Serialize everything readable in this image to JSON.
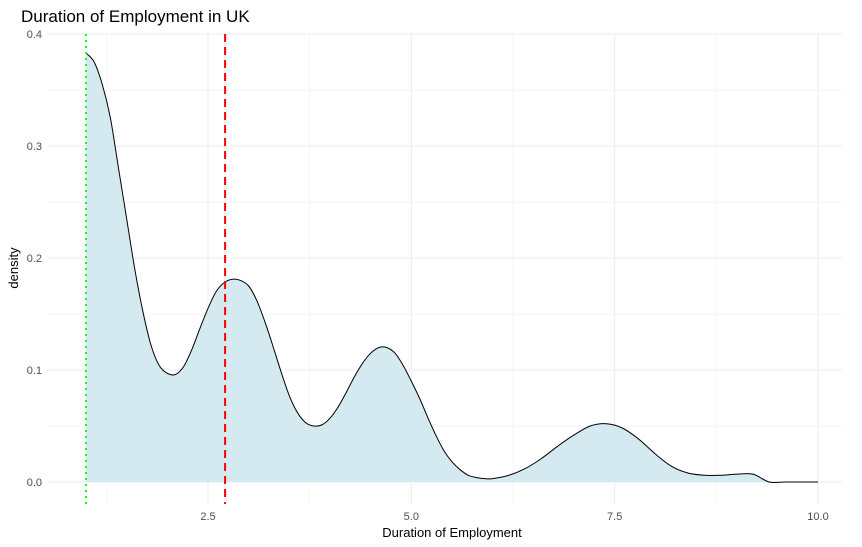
{
  "chart_data": {
    "type": "area",
    "title": "Duration of Employment in UK",
    "xlabel": "Duration of Employment",
    "ylabel": "density",
    "xlim": [
      1.0,
      10.0
    ],
    "ylim": [
      0.0,
      0.4
    ],
    "x_ticks": [
      2.5,
      5.0,
      7.5,
      10.0
    ],
    "x_tick_labels": [
      "2.5",
      "5.0",
      "7.5",
      "10.0"
    ],
    "y_ticks": [
      0.0,
      0.1,
      0.2,
      0.3,
      0.4
    ],
    "y_tick_labels": [
      "0.0",
      "0.1",
      "0.2",
      "0.3",
      "0.4"
    ],
    "grid": true,
    "fill_color": "#d4e9f0",
    "line_color": "#000000",
    "series": [
      {
        "x": [
          1.0,
          1.1,
          1.2,
          1.3,
          1.4,
          1.5,
          1.6,
          1.7,
          1.8,
          1.9,
          2.0,
          2.1,
          2.2,
          2.3,
          2.4,
          2.5,
          2.6,
          2.7,
          2.8,
          2.9,
          3.0,
          3.1,
          3.2,
          3.3,
          3.4,
          3.5,
          3.6,
          3.7,
          3.8,
          3.9,
          4.0,
          4.1,
          4.2,
          4.3,
          4.4,
          4.5,
          4.6,
          4.7,
          4.8,
          4.9,
          5.0,
          5.1,
          5.2,
          5.3,
          5.4,
          5.5,
          5.6,
          5.7,
          5.8,
          5.9,
          6.0,
          6.2,
          6.4,
          6.6,
          6.8,
          7.0,
          7.2,
          7.4,
          7.6,
          7.8,
          8.0,
          8.2,
          8.4,
          8.6,
          8.8,
          9.0,
          9.2,
          9.4,
          9.6,
          9.8,
          10.0
        ],
        "y": [
          0.383,
          0.375,
          0.355,
          0.325,
          0.28,
          0.235,
          0.19,
          0.152,
          0.122,
          0.104,
          0.097,
          0.096,
          0.103,
          0.118,
          0.137,
          0.155,
          0.17,
          0.178,
          0.181,
          0.18,
          0.175,
          0.162,
          0.143,
          0.121,
          0.098,
          0.077,
          0.062,
          0.053,
          0.05,
          0.051,
          0.057,
          0.067,
          0.08,
          0.094,
          0.106,
          0.115,
          0.12,
          0.12,
          0.115,
          0.104,
          0.09,
          0.075,
          0.058,
          0.042,
          0.028,
          0.018,
          0.011,
          0.006,
          0.004,
          0.003,
          0.003,
          0.006,
          0.012,
          0.021,
          0.032,
          0.042,
          0.05,
          0.052,
          0.048,
          0.038,
          0.025,
          0.014,
          0.008,
          0.006,
          0.006,
          0.007,
          0.007,
          0.0,
          0.0,
          0.0,
          0.0
        ]
      }
    ],
    "reference_lines": [
      {
        "x": 1.0,
        "color": "#00ff00",
        "style": "dotted"
      },
      {
        "x": 2.71,
        "color": "#ff0000",
        "style": "dashed"
      }
    ]
  }
}
